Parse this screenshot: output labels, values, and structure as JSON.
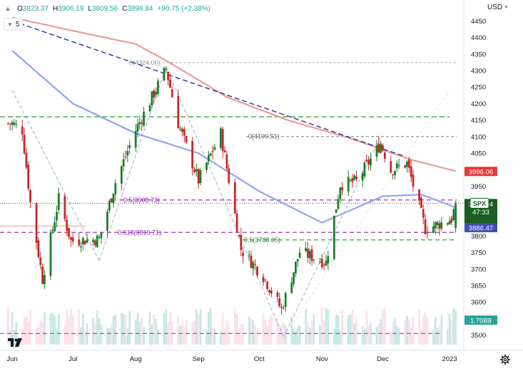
{
  "header": {
    "open_label": "O",
    "open": "3823.37",
    "high_label": "H",
    "high": "3906.19",
    "low_label": "L",
    "low": "3809.56",
    "close_label": "C",
    "close": "3898.84",
    "change": "+90.75 (+2.38%)",
    "ma_period": "5",
    "currency": "USD"
  },
  "price_tags": {
    "spx_label": "SPX",
    "spx_price": "3898.84",
    "spx_countdown": "47:33",
    "ma_red": "3996.06",
    "ma_blue": "3886.47",
    "volume": "1.708B"
  },
  "fib_labels": {
    "f0_a": "0(4324.00)",
    "f0_b": "0(4100.51)",
    "f05_a": "0.5(3908.73)",
    "f0618": "0.618(3810.71)",
    "f05_b": "0.5(3788.05)"
  },
  "colors": {
    "up": "#26a69a",
    "down": "#ef5350",
    "bull_candle": "#1b7f2a",
    "bear_candle": "#c62828",
    "ma_red": "#ef9a9a",
    "ma_blue": "#90a4f4",
    "trend_dark": "#283593",
    "fib_purple": "#9c27b0",
    "fib_green": "#2e7d32",
    "spx_tag": "#1b5e20",
    "ma_red_tag": "#e53935",
    "ma_blue_tag": "#3f51b5",
    "vol_tag": "#26a69a"
  },
  "chart_data": {
    "type": "candlestick",
    "x_ticks": [
      "Jun",
      "Jul",
      "Aug",
      "Sep",
      "Oct",
      "Nov",
      "Dec",
      "2023"
    ],
    "y_ticks": [
      3500,
      3550,
      3600,
      3650,
      3700,
      3750,
      3800,
      3850,
      3900,
      3950,
      4000,
      4050,
      4100,
      4150,
      4200,
      4250,
      4300,
      4350,
      4400,
      4450
    ],
    "ylim": [
      3480,
      4470
    ],
    "anchors": [
      [
        "2022-06-01",
        4140
      ],
      [
        "2022-06-06",
        4120
      ],
      [
        "2022-06-10",
        3900
      ],
      [
        "2022-06-16",
        3670
      ],
      [
        "2022-06-24",
        3912
      ],
      [
        "2022-06-30",
        3785
      ],
      [
        "2022-07-14",
        3790
      ],
      [
        "2022-07-22",
        3962
      ],
      [
        "2022-08-01",
        4120
      ],
      [
        "2022-08-16",
        4305
      ],
      [
        "2022-08-22",
        4140
      ],
      [
        "2022-09-01",
        3967
      ],
      [
        "2022-09-12",
        4110
      ],
      [
        "2022-09-22",
        3760
      ],
      [
        "2022-10-03",
        3678
      ],
      [
        "2022-10-12",
        3578
      ],
      [
        "2022-10-21",
        3752
      ],
      [
        "2022-11-03",
        3720
      ],
      [
        "2022-11-10",
        3956
      ],
      [
        "2022-11-18",
        3965
      ],
      [
        "2022-11-30",
        4080
      ],
      [
        "2022-12-05",
        3998
      ],
      [
        "2022-12-13",
        4019
      ],
      [
        "2022-12-22",
        3822
      ],
      [
        "2022-12-30",
        3839
      ],
      [
        "2023-01-04",
        3852
      ],
      [
        "2023-01-06",
        3898
      ]
    ],
    "last": {
      "open": 3823.37,
      "high": 3906.19,
      "low": 3809.56,
      "close": 3898.84
    },
    "ma_200": [
      [
        "2022-06-01",
        4460
      ],
      [
        "2022-07-01",
        4420
      ],
      [
        "2022-08-01",
        4380
      ],
      [
        "2022-08-16",
        4330
      ],
      [
        "2022-09-15",
        4220
      ],
      [
        "2022-10-15",
        4150
      ],
      [
        "2022-11-15",
        4095
      ],
      [
        "2022-12-15",
        4030
      ],
      [
        "2023-01-06",
        3996.06
      ]
    ],
    "ma_100": [
      [
        "2022-06-01",
        4360
      ],
      [
        "2022-07-01",
        4200
      ],
      [
        "2022-08-01",
        4110
      ],
      [
        "2022-09-01",
        4050
      ],
      [
        "2022-10-01",
        3935
      ],
      [
        "2022-11-01",
        3840
      ],
      [
        "2022-12-01",
        3920
      ],
      [
        "2022-12-20",
        3925
      ],
      [
        "2023-01-06",
        3886.47
      ]
    ],
    "horizontal_levels": [
      {
        "name": "green-level-top",
        "value": 4160
      },
      {
        "name": "fib-0-a",
        "value": 4324
      },
      {
        "name": "fib-0-b",
        "value": 4100.51
      },
      {
        "name": "fib-0.5-a",
        "value": 3908.73
      },
      {
        "name": "fib-0.618",
        "value": 3810.71
      },
      {
        "name": "fib-0.5-b",
        "value": 3788.05
      },
      {
        "name": "bottom-level",
        "value": 3505
      }
    ],
    "trendline": [
      [
        "2022-06-01",
        4450
      ],
      [
        "2022-12-12",
        4040
      ]
    ]
  }
}
